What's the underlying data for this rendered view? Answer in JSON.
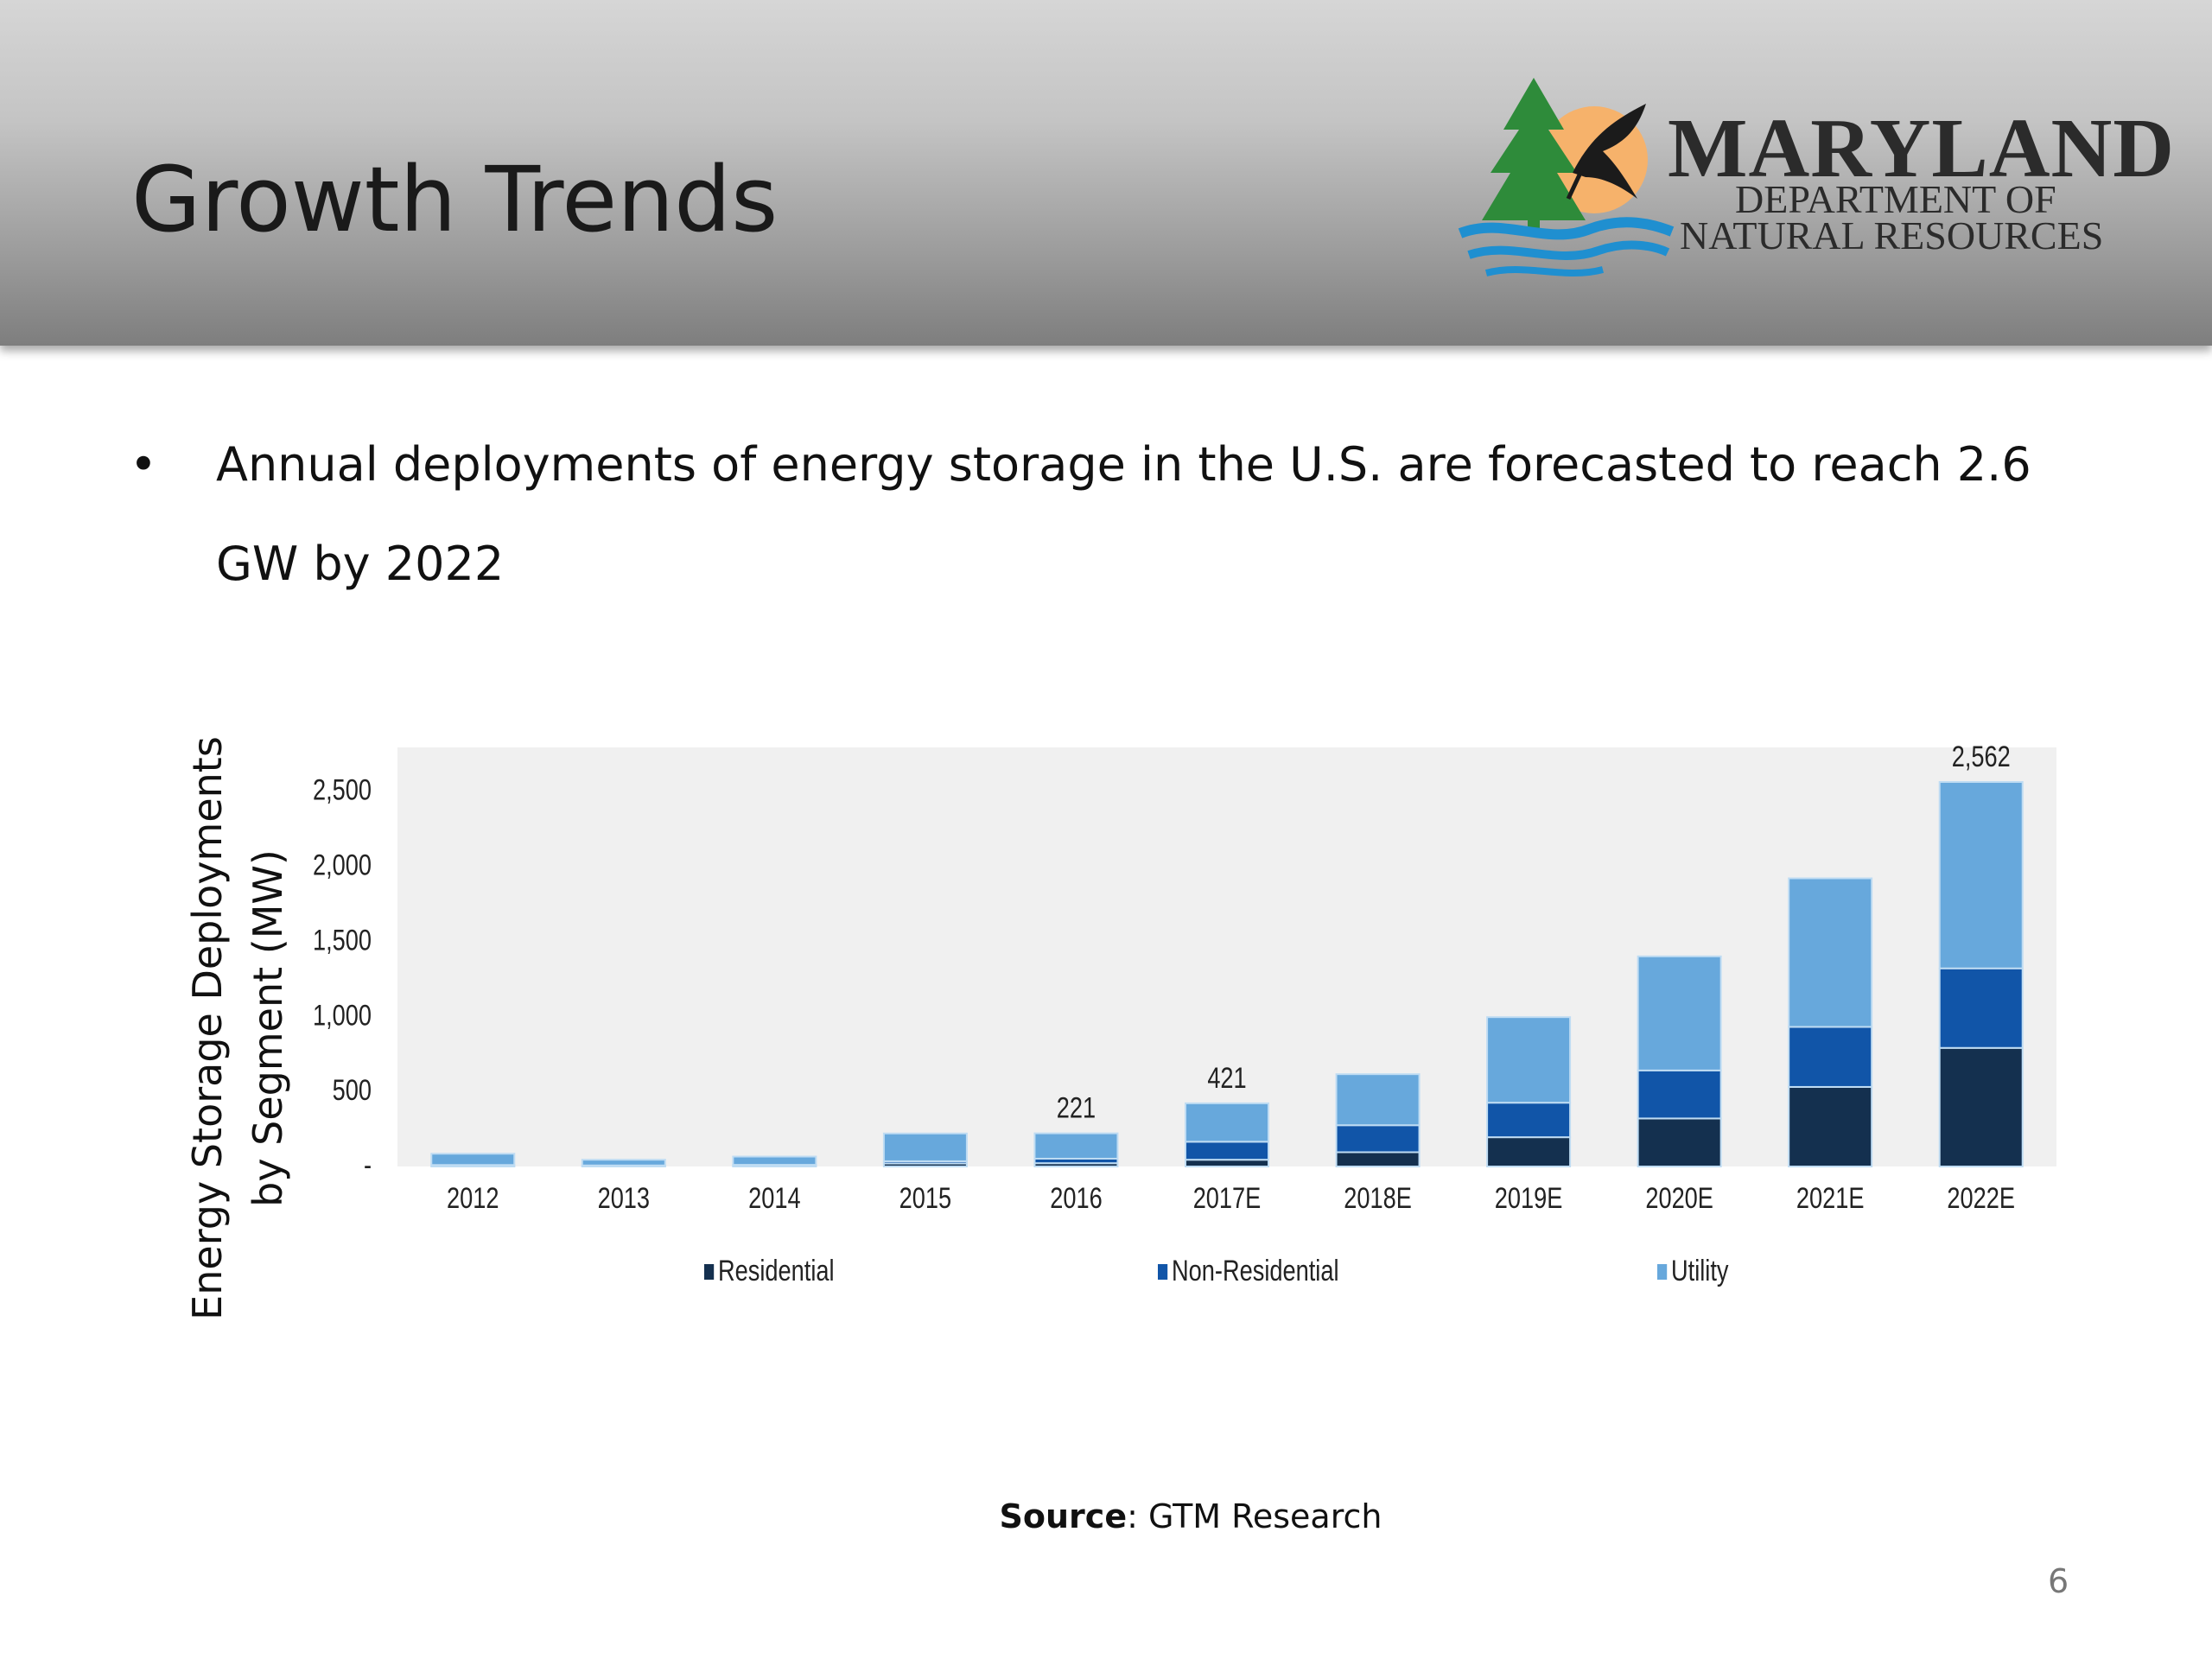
{
  "slide": {
    "title": "Growth Trends",
    "page_number": "6"
  },
  "logo": {
    "line1": "MARYLAND",
    "line2": "DEPARTMENT OF",
    "line3": "NATURAL RESOURCES"
  },
  "bullets": [
    {
      "marker": "•",
      "text": "Annual deployments of energy storage in the U.S. are forecasted to reach 2.6 GW by 2022"
    }
  ],
  "source": {
    "label": "Source",
    "text": ": GTM Research"
  },
  "colors": {
    "residential": "#14304f",
    "non_residential": "#1155a8",
    "utility": "#67a8dc",
    "plot_background": "#f0f0f0"
  },
  "chart_data": {
    "type": "bar",
    "stacked": true,
    "ylabel": "Energy Storage Deployments by Segment (MW)",
    "ylim": [
      0,
      2800
    ],
    "y_ticks": [
      {
        "value": 0,
        "label": "-"
      },
      {
        "value": 500,
        "label": "500"
      },
      {
        "value": 1000,
        "label": "1,000"
      },
      {
        "value": 1500,
        "label": "1,500"
      },
      {
        "value": 2000,
        "label": "2,000"
      },
      {
        "value": 2500,
        "label": "2,500"
      }
    ],
    "grid": false,
    "legend_position": "bottom",
    "categories": [
      "2012",
      "2013",
      "2014",
      "2015",
      "2016",
      "2017E",
      "2018E",
      "2019E",
      "2020E",
      "2021E",
      "2022E"
    ],
    "series": [
      {
        "name": "Residential",
        "values": [
          2,
          2,
          3,
          20,
          22,
          45,
          95,
          195,
          320,
          530,
          790
        ]
      },
      {
        "name": "Non-Residential",
        "values": [
          8,
          5,
          8,
          15,
          30,
          120,
          180,
          230,
          320,
          400,
          530
        ]
      },
      {
        "name": "Utility",
        "values": [
          75,
          38,
          55,
          185,
          169,
          256,
          340,
          570,
          760,
          990,
          1242
        ]
      }
    ],
    "data_labels": [
      {
        "category": "2016",
        "text": "221",
        "value": 221
      },
      {
        "category": "2017E",
        "text": "421",
        "value": 421
      },
      {
        "category": "2022E",
        "text": "2,562",
        "value": 2562
      }
    ]
  }
}
